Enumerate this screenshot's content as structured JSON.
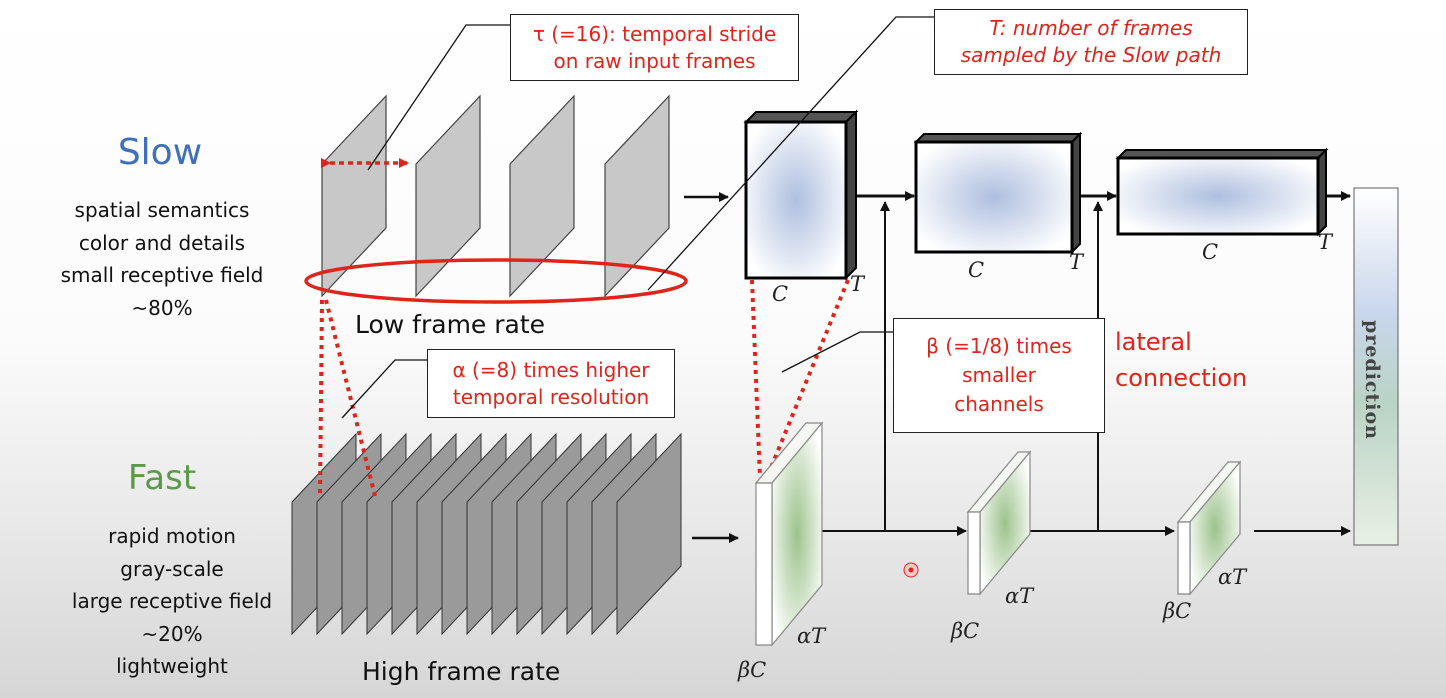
{
  "slow": {
    "title": "Slow",
    "lines": [
      "spatial semantics",
      "color and details",
      "small receptive field",
      "~80%"
    ]
  },
  "fast": {
    "title": "Fast",
    "lines": [
      "rapid motion",
      "gray-scale",
      "large receptive field",
      "~20%",
      "lightweight"
    ]
  },
  "frame_rates": {
    "low": "Low frame rate",
    "high": "High frame rate"
  },
  "notes": {
    "tau": [
      "τ (=16): temporal stride",
      "on raw input frames"
    ],
    "T": [
      "T: number of frames",
      "sampled by the Slow path"
    ],
    "alpha": [
      "α (=8) times higher",
      "temporal resolution"
    ],
    "beta": [
      "β (=1/8) times",
      "smaller",
      "channels"
    ],
    "lateral": [
      "lateral",
      "connection"
    ]
  },
  "symbols": {
    "C": "C",
    "T": "T",
    "betaC": "βC",
    "alphaT": "αT"
  },
  "prediction_label": "prediction",
  "colors": {
    "slow": "#3e6fbf",
    "fast": "#5a9a4a",
    "annotation": "#e0241c",
    "slow_feature": "#b8c9e6",
    "fast_feature": "#9cc38c"
  }
}
